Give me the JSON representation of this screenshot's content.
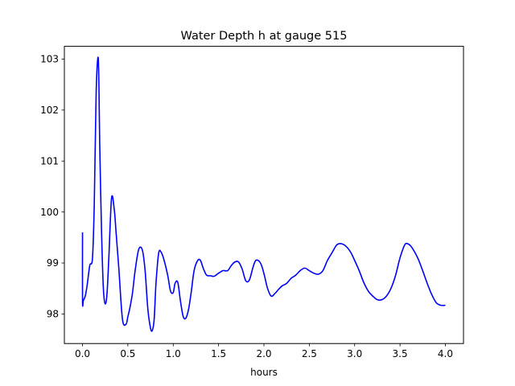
{
  "chart_data": {
    "type": "line",
    "title": "Water Depth h at gauge 515",
    "xlabel": "hours",
    "ylabel": "",
    "xlim": [
      -0.2,
      4.2
    ],
    "ylim": [
      97.42,
      103.25
    ],
    "x_ticks": [
      0.0,
      0.5,
      1.0,
      1.5,
      2.0,
      2.5,
      3.0,
      3.5,
      4.0
    ],
    "x_tick_labels": [
      "0.0",
      "0.5",
      "1.0",
      "1.5",
      "2.0",
      "2.5",
      "3.0",
      "3.5",
      "4.0"
    ],
    "y_ticks": [
      98,
      99,
      100,
      101,
      102,
      103
    ],
    "y_tick_labels": [
      "98",
      "99",
      "100",
      "101",
      "102",
      "103"
    ],
    "grid": false,
    "legend": "none",
    "series": [
      {
        "color": "#0000ff",
        "x": [
          0.0,
          0.0,
          0.01,
          0.03,
          0.05,
          0.08,
          0.11,
          0.13,
          0.15,
          0.17,
          0.18,
          0.19,
          0.21,
          0.23,
          0.25,
          0.27,
          0.29,
          0.32,
          0.35,
          0.37,
          0.4,
          0.44,
          0.48,
          0.5,
          0.52,
          0.55,
          0.58,
          0.62,
          0.66,
          0.69,
          0.72,
          0.75,
          0.77,
          0.79,
          0.81,
          0.84,
          0.87,
          0.9,
          0.94,
          0.97,
          1.0,
          1.02,
          1.05,
          1.08,
          1.11,
          1.14,
          1.17,
          1.2,
          1.23,
          1.27,
          1.3,
          1.33,
          1.36,
          1.38,
          1.41,
          1.45,
          1.5,
          1.55,
          1.6,
          1.64,
          1.68,
          1.72,
          1.76,
          1.8,
          1.84,
          1.88,
          1.91,
          1.95,
          1.98,
          2.01,
          2.04,
          2.08,
          2.12,
          2.16,
          2.2,
          2.25,
          2.3,
          2.35,
          2.4,
          2.45,
          2.5,
          2.55,
          2.6,
          2.65,
          2.7,
          2.75,
          2.8,
          2.84,
          2.88,
          2.92,
          2.96,
          3.0,
          3.05,
          3.1,
          3.15,
          3.2,
          3.25,
          3.3,
          3.35,
          3.4,
          3.45,
          3.5,
          3.55,
          3.58,
          3.62,
          3.66,
          3.7,
          3.75,
          3.8,
          3.85,
          3.9,
          3.95,
          4.0
        ],
        "y": [
          99.6,
          98.25,
          98.27,
          98.35,
          98.55,
          98.95,
          99.1,
          100.2,
          102.3,
          103.03,
          102.6,
          101.3,
          99.6,
          98.5,
          98.2,
          98.4,
          99.1,
          100.27,
          100.05,
          99.6,
          98.9,
          97.9,
          97.8,
          97.95,
          98.1,
          98.4,
          98.85,
          99.27,
          99.25,
          98.85,
          98.1,
          97.72,
          97.68,
          97.9,
          98.6,
          99.2,
          99.2,
          99.05,
          98.75,
          98.45,
          98.42,
          98.6,
          98.62,
          98.25,
          97.95,
          97.92,
          98.1,
          98.45,
          98.85,
          99.05,
          99.05,
          98.9,
          98.78,
          98.75,
          98.75,
          98.74,
          98.8,
          98.85,
          98.85,
          98.95,
          99.02,
          99.02,
          98.88,
          98.65,
          98.67,
          98.92,
          99.05,
          99.03,
          98.92,
          98.72,
          98.5,
          98.35,
          98.4,
          98.48,
          98.55,
          98.6,
          98.7,
          98.76,
          98.85,
          98.9,
          98.85,
          98.8,
          98.78,
          98.85,
          99.05,
          99.2,
          99.35,
          99.38,
          99.36,
          99.3,
          99.2,
          99.05,
          98.85,
          98.62,
          98.45,
          98.35,
          98.28,
          98.28,
          98.35,
          98.5,
          98.75,
          99.1,
          99.35,
          99.38,
          99.33,
          99.22,
          99.08,
          98.85,
          98.6,
          98.38,
          98.22,
          98.17,
          98.17
        ]
      }
    ]
  }
}
